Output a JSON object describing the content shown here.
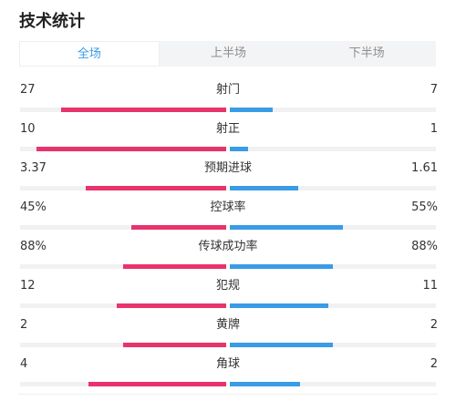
{
  "header": {
    "title": "技术统计"
  },
  "tabs": [
    {
      "label": "全场",
      "active": true
    },
    {
      "label": "上半场",
      "active": false
    },
    {
      "label": "下半场",
      "active": false
    }
  ],
  "colors": {
    "home": "#e8336d",
    "away": "#3a9be6",
    "accent": "#3a9be6",
    "track": "#f1f1f3"
  },
  "stats": [
    {
      "name": "射门",
      "home": "27",
      "away": "7",
      "home_share": 0.8,
      "away_share": 0.21
    },
    {
      "name": "射正",
      "home": "10",
      "away": "1",
      "home_share": 0.92,
      "away_share": 0.09
    },
    {
      "name": "预期进球",
      "home": "3.37",
      "away": "1.61",
      "home_share": 0.68,
      "away_share": 0.33
    },
    {
      "name": "控球率",
      "home": "45%",
      "away": "55%",
      "home_share": 0.46,
      "away_share": 0.55
    },
    {
      "name": "传球成功率",
      "home": "88%",
      "away": "88%",
      "home_share": 0.5,
      "away_share": 0.5
    },
    {
      "name": "犯规",
      "home": "12",
      "away": "11",
      "home_share": 0.53,
      "away_share": 0.48
    },
    {
      "name": "黄牌",
      "home": "2",
      "away": "2",
      "home_share": 0.5,
      "away_share": 0.5
    },
    {
      "name": "角球",
      "home": "4",
      "away": "2",
      "home_share": 0.67,
      "away_share": 0.34
    }
  ]
}
